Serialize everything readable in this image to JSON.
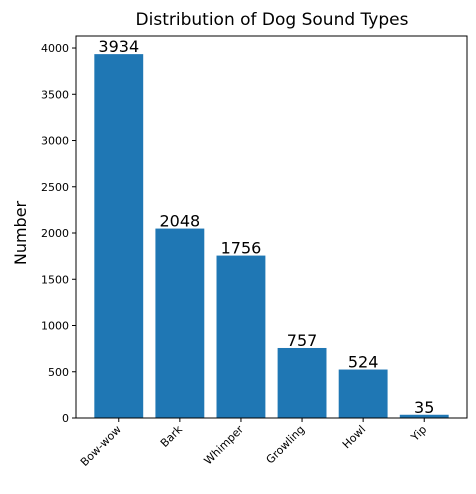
{
  "chart_data": {
    "type": "bar",
    "title": "Distribution of Dog Sound Types",
    "xlabel": "",
    "ylabel": "Number",
    "categories": [
      "Bow-wow",
      "Bark",
      "Whimper",
      "Growling",
      "Howl",
      "Yip"
    ],
    "values": [
      3934,
      2048,
      1756,
      757,
      524,
      35
    ],
    "ylim": [
      0,
      4130
    ],
    "yticks": [
      0,
      500,
      1000,
      1500,
      2000,
      2500,
      3000,
      3500,
      4000
    ],
    "bar_color": "#1f77b4",
    "grid": false,
    "data_labels": true
  }
}
